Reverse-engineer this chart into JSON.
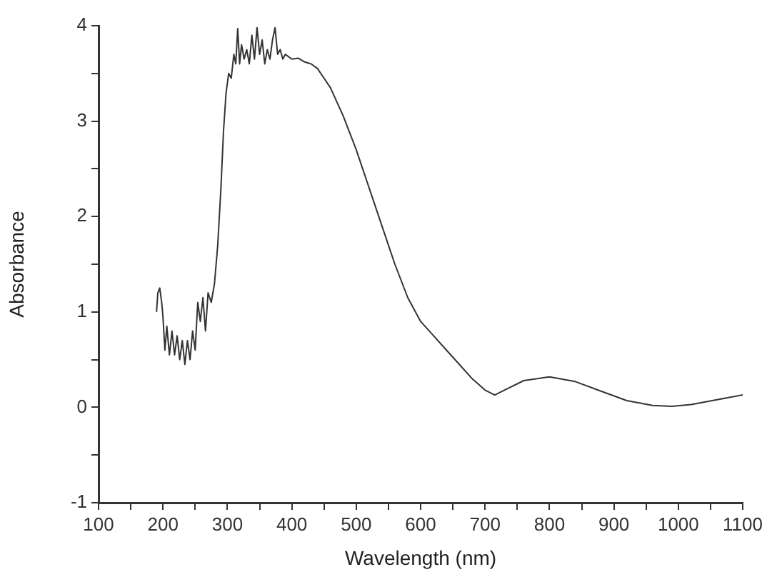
{
  "chart_data": {
    "type": "line",
    "xlabel": "Wavelength (nm)",
    "ylabel": "Absorbance",
    "xlim": [
      100,
      1100
    ],
    "ylim": [
      -1,
      4
    ],
    "xticks": [
      100,
      {
        "value": 150,
        "label": null
      },
      200,
      {
        "value": 250,
        "label": null
      },
      300,
      {
        "value": 350,
        "label": null
      },
      400,
      {
        "value": 450,
        "label": null
      },
      500,
      {
        "value": 550,
        "label": null
      },
      600,
      {
        "value": 650,
        "label": null
      },
      700,
      {
        "value": 750,
        "label": null
      },
      800,
      {
        "value": 850,
        "label": null
      },
      900,
      {
        "value": 950,
        "label": null
      },
      1000,
      {
        "value": 1050,
        "label": null
      },
      1100
    ],
    "yticks": [
      -1,
      {
        "value": -0.5,
        "label": null
      },
      0,
      {
        "value": 0.5,
        "label": null
      },
      1,
      {
        "value": 1.5,
        "label": null
      },
      2,
      {
        "value": 2.5,
        "label": null
      },
      3,
      {
        "value": 3.5,
        "label": null
      },
      4
    ],
    "grid": false,
    "legend": false,
    "marker": "none",
    "line_style": "solid",
    "series": [
      {
        "color": "#333333",
        "x": [
          190,
          192,
          195,
          198,
          200,
          203,
          206,
          210,
          214,
          218,
          222,
          226,
          230,
          234,
          238,
          242,
          246,
          250,
          254,
          258,
          262,
          266,
          270,
          275,
          280,
          285,
          290,
          294,
          298,
          302,
          306,
          310,
          313,
          316,
          319,
          322,
          326,
          330,
          334,
          338,
          342,
          346,
          350,
          354,
          358,
          362,
          366,
          370,
          374,
          378,
          382,
          386,
          390,
          400,
          410,
          420,
          430,
          440,
          450,
          460,
          470,
          480,
          500,
          520,
          540,
          560,
          580,
          600,
          620,
          640,
          660,
          680,
          700,
          715,
          730,
          760,
          800,
          840,
          880,
          920,
          960,
          990,
          1020,
          1060,
          1100
        ],
        "values": [
          1.0,
          1.2,
          1.25,
          1.1,
          0.95,
          0.6,
          0.85,
          0.55,
          0.8,
          0.55,
          0.75,
          0.5,
          0.7,
          0.45,
          0.7,
          0.5,
          0.8,
          0.6,
          1.1,
          0.9,
          1.15,
          0.8,
          1.2,
          1.1,
          1.3,
          1.7,
          2.3,
          2.9,
          3.3,
          3.5,
          3.45,
          3.7,
          3.6,
          3.97,
          3.6,
          3.8,
          3.65,
          3.75,
          3.6,
          3.9,
          3.65,
          3.98,
          3.7,
          3.85,
          3.6,
          3.75,
          3.65,
          3.85,
          3.98,
          3.7,
          3.75,
          3.65,
          3.7,
          3.65,
          3.66,
          3.62,
          3.6,
          3.55,
          3.45,
          3.35,
          3.2,
          3.05,
          2.7,
          2.3,
          1.9,
          1.5,
          1.15,
          0.9,
          0.75,
          0.6,
          0.45,
          0.3,
          0.18,
          0.13,
          0.18,
          0.28,
          0.32,
          0.27,
          0.17,
          0.07,
          0.02,
          0.01,
          0.03,
          0.08,
          0.13
        ]
      }
    ]
  }
}
